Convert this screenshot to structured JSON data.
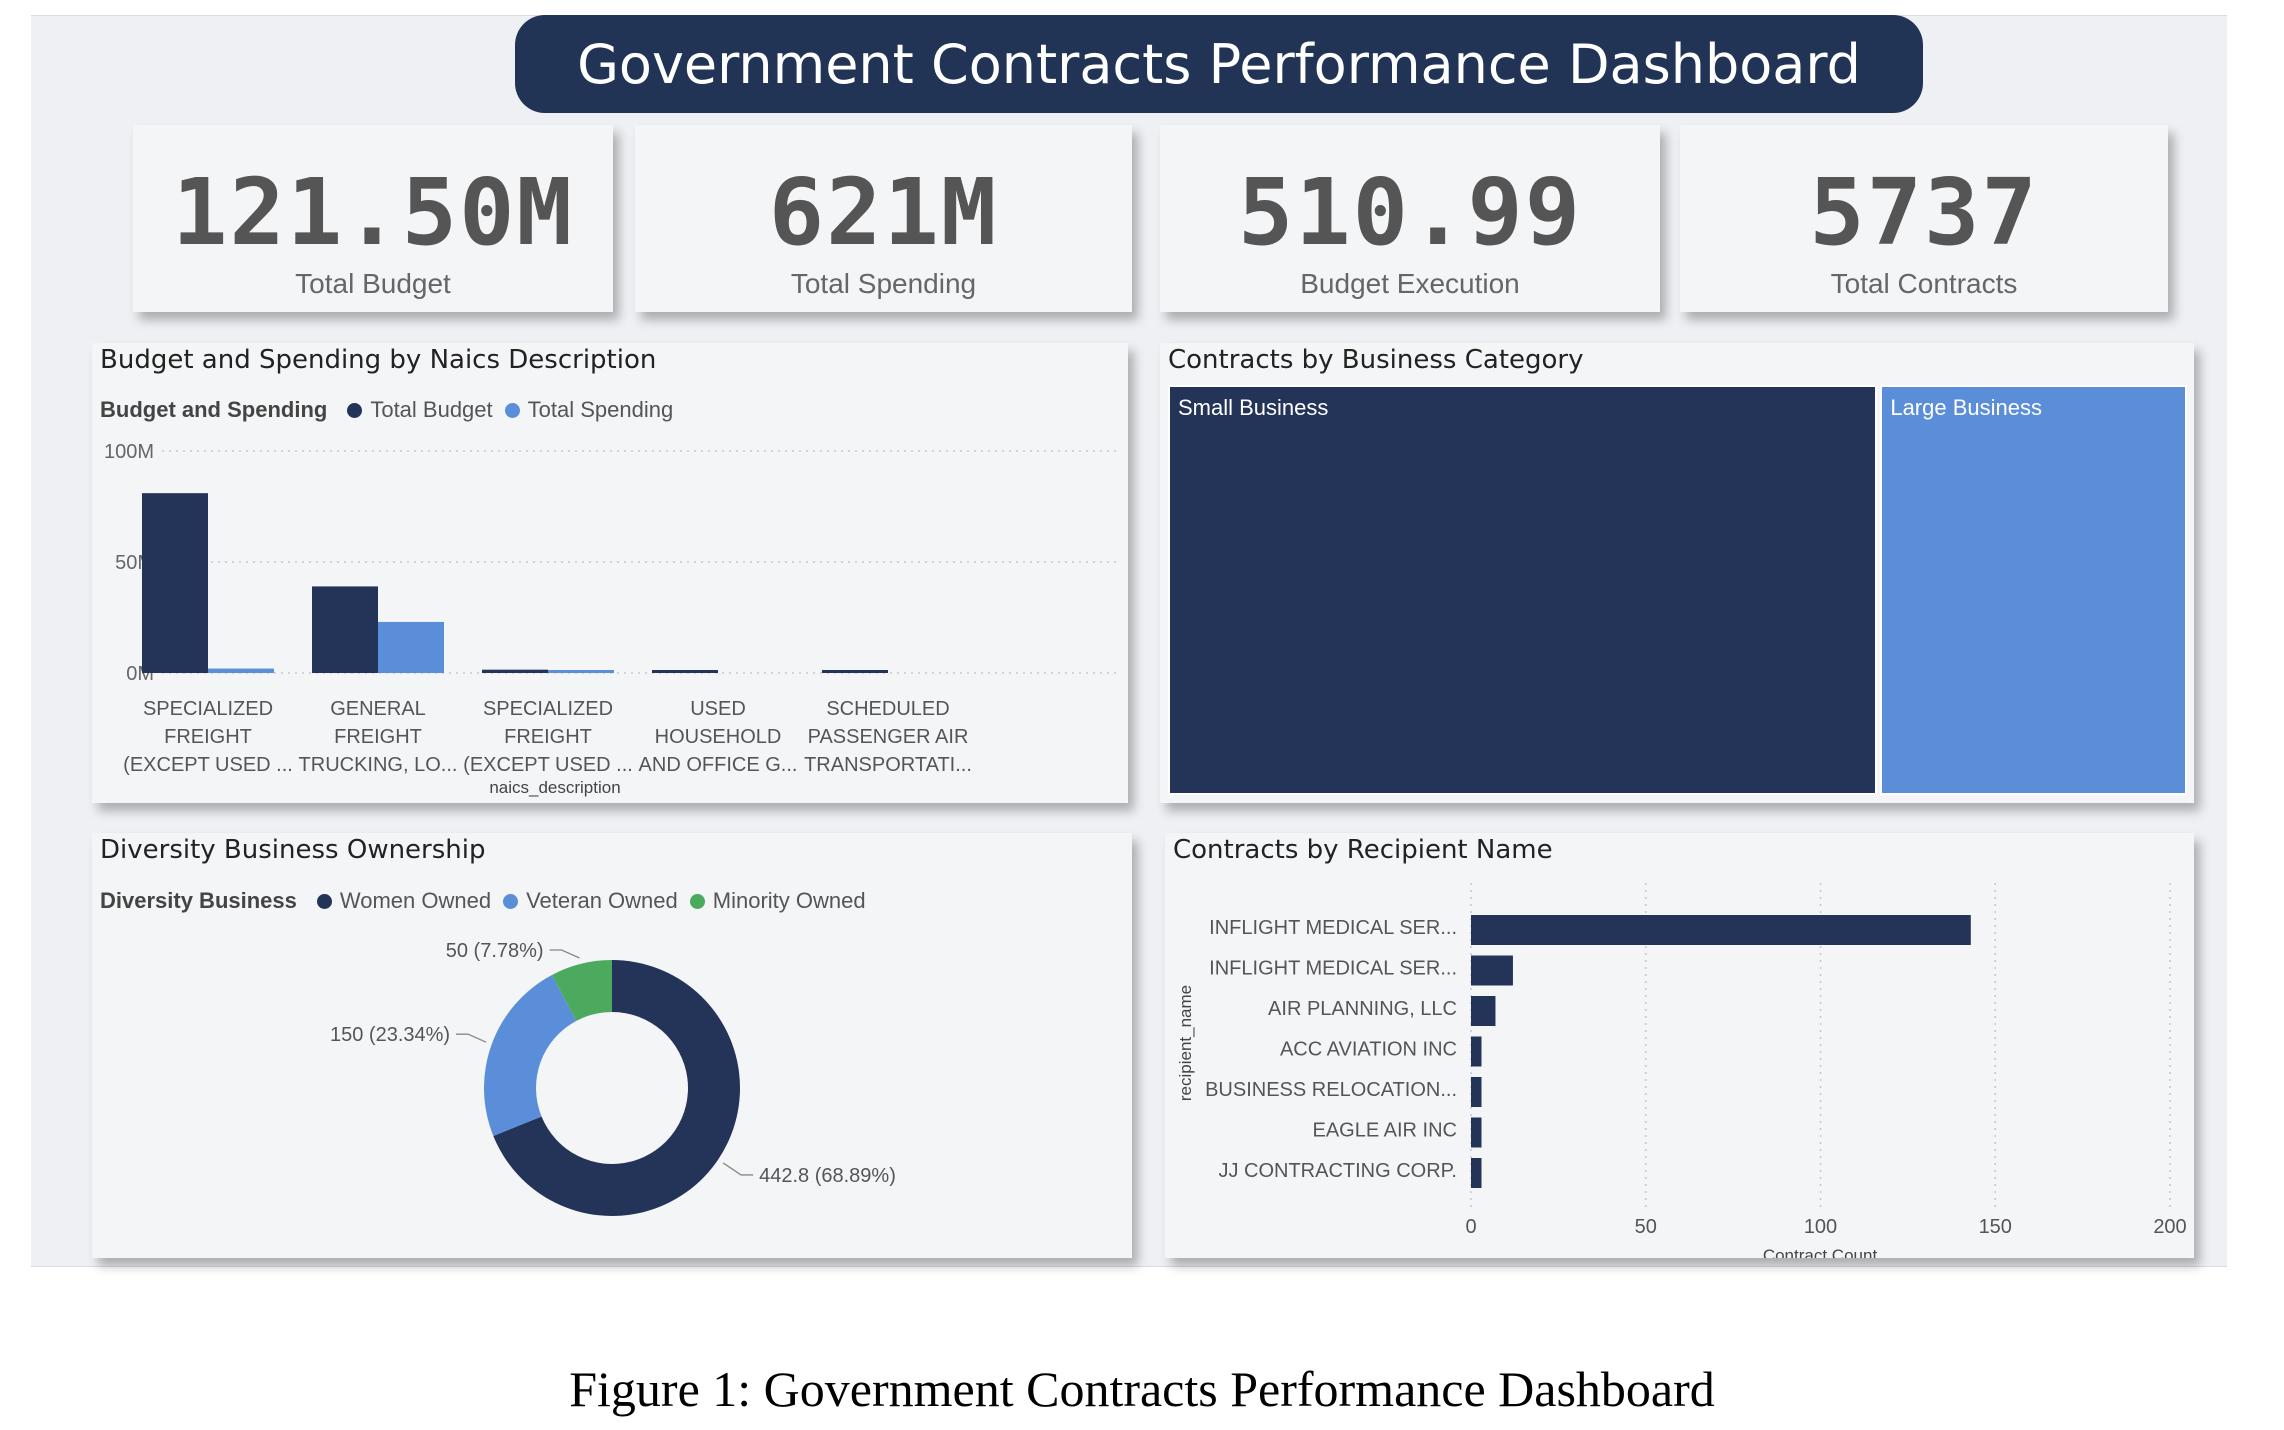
{
  "header": {
    "title": "Government Contracts Performance Dashboard"
  },
  "kpis": [
    {
      "value": "121.50M",
      "label": "Total Budget"
    },
    {
      "value": "621M",
      "label": "Total Spending"
    },
    {
      "value": "510.99",
      "label": "Budget Execution"
    },
    {
      "value": "5737",
      "label": "Total Contracts"
    }
  ],
  "panels": {
    "budget": {
      "title": "Budget and Spending by Naics Description",
      "legend_title": "Budget and Spending",
      "legend": [
        "Total Budget",
        "Total Spending"
      ]
    },
    "category": {
      "title": "Contracts by Business Category"
    },
    "diversity": {
      "title": "Diversity Business Ownership",
      "legend_title": "Diversity Business",
      "legend": [
        "Women Owned",
        "Veteran Owned",
        "Minority Owned"
      ]
    },
    "recipient": {
      "title": "Contracts by Recipient Name"
    }
  },
  "colors": {
    "dark": "#233458",
    "light": "#5b8ed8",
    "green": "#4caa5f",
    "title_bg": "#213455"
  },
  "chart_data": [
    {
      "type": "bar",
      "title": "Budget and Spending by Naics Description",
      "xlabel": "naics_description",
      "ylabel": "",
      "ylim": [
        0,
        100
      ],
      "y_ticks": [
        "0M",
        "50M",
        "100M"
      ],
      "y_tick_values": [
        0,
        50,
        100
      ],
      "categories": [
        [
          "SPECIALIZED",
          "FREIGHT",
          "(EXCEPT USED ..."
        ],
        [
          "GENERAL",
          "FREIGHT",
          "TRUCKING, LO..."
        ],
        [
          "SPECIALIZED",
          "FREIGHT",
          "(EXCEPT USED ..."
        ],
        [
          "USED",
          "HOUSEHOLD",
          "AND OFFICE G..."
        ],
        [
          "SCHEDULED",
          "PASSENGER AIR",
          "TRANSPORTATI..."
        ]
      ],
      "series": [
        {
          "name": "Total Budget",
          "values": [
            81,
            39,
            1.5,
            0.8,
            0.8
          ]
        },
        {
          "name": "Total Spending",
          "values": [
            2,
            23,
            0.8,
            0,
            0
          ]
        }
      ],
      "grid": true,
      "legend": "top-left"
    },
    {
      "type": "treemap",
      "title": "Contracts by Business Category",
      "categories": [
        "Small Business",
        "Large Business"
      ],
      "values": [
        69.7,
        30.3
      ]
    },
    {
      "type": "pie",
      "title": "Diversity Business Ownership",
      "categories": [
        "Women Owned",
        "Veteran Owned",
        "Minority Owned"
      ],
      "values": [
        442.8,
        150,
        50
      ],
      "labels": [
        "442.8 (68.89%)",
        "150 (23.34%)",
        "50 (7.78%)"
      ],
      "donut": true,
      "legend": "top-left"
    },
    {
      "type": "bar",
      "orientation": "horizontal",
      "title": "Contracts by Recipient Name",
      "xlabel": "Contract Count",
      "ylabel": "recipient_name",
      "xlim": [
        0,
        200
      ],
      "x_ticks": [
        0,
        50,
        100,
        150,
        200
      ],
      "categories": [
        "INFLIGHT MEDICAL SER...",
        "INFLIGHT MEDICAL SER...",
        "AIR PLANNING, LLC",
        "ACC AVIATION INC",
        "BUSINESS RELOCATION...",
        "EAGLE AIR INC",
        "JJ CONTRACTING CORP."
      ],
      "values": [
        143,
        12,
        7,
        3,
        3,
        3,
        3
      ],
      "grid": true
    }
  ]
}
